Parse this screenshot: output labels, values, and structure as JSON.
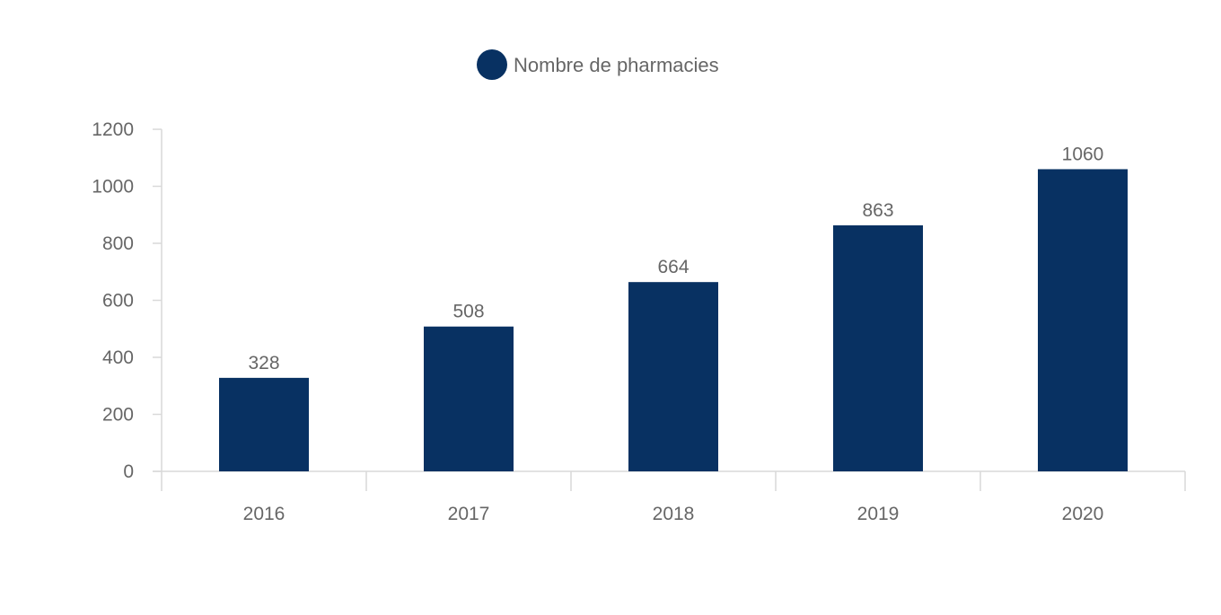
{
  "colors": {
    "bar": "#083162",
    "axis": "#d9d9d9",
    "text": "#666666"
  },
  "chart_data": {
    "type": "bar",
    "title": "",
    "xlabel": "",
    "ylabel": "",
    "categories": [
      "2016",
      "2017",
      "2018",
      "2019",
      "2020"
    ],
    "series": [
      {
        "name": "Nombre de pharmacies",
        "values": [
          328,
          508,
          664,
          863,
          1060
        ],
        "color": "#083162"
      }
    ],
    "ylim": [
      0,
      1200
    ],
    "yticks": [
      0,
      200,
      400,
      600,
      800,
      1000,
      1200
    ],
    "grid": false,
    "legend": "top-center",
    "data_labels": true
  }
}
